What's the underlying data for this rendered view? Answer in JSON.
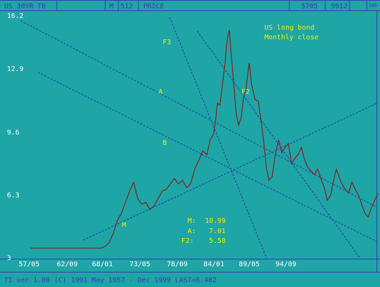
{
  "header": {
    "series_code": "US 30YR TB",
    "period": "M",
    "number": "512",
    "type": "PRICE",
    "field1": "5705",
    "field2": "9912",
    "field3": "100"
  },
  "footer": {
    "text": "TI ver 1.00 (C) 1991  May 1957 - Dec 1999  LAST=6.482"
  },
  "colors": {
    "background": "#1ea5a5",
    "price_line": "#8b1a1a",
    "trend": "#1f3aa8",
    "frame": "#3838b8",
    "label": "#f2f200",
    "text_white": "#ffffff"
  },
  "chart_data": {
    "type": "line",
    "title": "US long bond",
    "subtitle": "Monthly close",
    "x_ticks": [
      "57/05",
      "62/09",
      "68/01",
      "73/05",
      "78/09",
      "84/01",
      "89/05",
      "94/09"
    ],
    "y_ticks": [
      "16.2",
      "12.9",
      "9.6",
      "6.3",
      "3"
    ],
    "ylim": [
      3,
      16.2
    ],
    "xlim": [
      1957.33,
      2000.0
    ],
    "grid": false,
    "series": [
      {
        "x": [
          1957.33,
          1958,
          1959,
          1960,
          1961,
          1962,
          1963,
          1964,
          1965,
          1966,
          1966.5,
          1967,
          1967.5,
          1968,
          1968.5,
          1969,
          1969.5,
          1970,
          1970.5,
          1971,
          1971.5,
          1972,
          1972.5,
          1973,
          1973.5,
          1974,
          1974.5,
          1975,
          1975.5,
          1976,
          1976.5,
          1977,
          1977.5,
          1978,
          1978.5,
          1979,
          1979.4,
          1979.8,
          1980.1,
          1980.3,
          1980.6,
          1980.9,
          1981.2,
          1981.5,
          1981.75,
          1982.0,
          1982.3,
          1982.6,
          1982.9,
          1983.2,
          1983.5,
          1983.8,
          1984.2,
          1984.5,
          1984.9,
          1985.3,
          1985.6,
          1986.0,
          1986.3,
          1986.6,
          1987.0,
          1987.4,
          1987.8,
          1988.2,
          1988.6,
          1989.0,
          1989.4,
          1989.8,
          1990.2,
          1990.6,
          1991.0,
          1991.4,
          1991.8,
          1992.2,
          1992.6,
          1993.0,
          1993.4,
          1993.8,
          1994.2,
          1994.6,
          1994.9,
          1995.3,
          1995.7,
          1996.0,
          1996.4,
          1996.8,
          1997.2,
          1997.6,
          1998.0,
          1998.4,
          1998.8,
          1999.2,
          1999.6,
          2000.0
        ],
        "values": [
          3.5,
          3.5,
          3.5,
          3.5,
          3.5,
          3.5,
          3.5,
          3.5,
          3.5,
          3.5,
          3.6,
          3.8,
          4.3,
          5.0,
          5.4,
          6.0,
          6.6,
          7.1,
          6.2,
          5.9,
          6.0,
          5.6,
          5.8,
          6.2,
          6.6,
          6.7,
          7.0,
          7.3,
          7.0,
          7.2,
          6.8,
          7.0,
          7.8,
          8.3,
          8.8,
          8.6,
          9.4,
          9.7,
          10.6,
          11.4,
          11.3,
          12.4,
          13.5,
          14.9,
          15.4,
          14.0,
          12.4,
          10.8,
          10.2,
          10.6,
          11.7,
          12.2,
          13.6,
          12.4,
          11.6,
          11.5,
          10.6,
          9.2,
          7.9,
          7.2,
          7.4,
          8.6,
          9.4,
          8.7,
          9.0,
          9.2,
          8.1,
          8.4,
          8.6,
          9.0,
          8.3,
          7.9,
          7.7,
          7.5,
          7.8,
          7.3,
          6.8,
          6.1,
          6.4,
          7.3,
          7.8,
          7.3,
          6.9,
          6.7,
          6.5,
          7.1,
          6.7,
          6.4,
          5.9,
          5.4,
          5.2,
          5.7,
          6.1,
          6.5
        ]
      }
    ],
    "annotations": [
      "F3",
      "A",
      "F2",
      "B",
      "M"
    ],
    "values_box": [
      {
        "label": "M:",
        "value": "10.99"
      },
      {
        "label": "A:",
        "value": "7.01"
      },
      {
        "label": "F2:",
        "value": "5.58"
      }
    ]
  }
}
